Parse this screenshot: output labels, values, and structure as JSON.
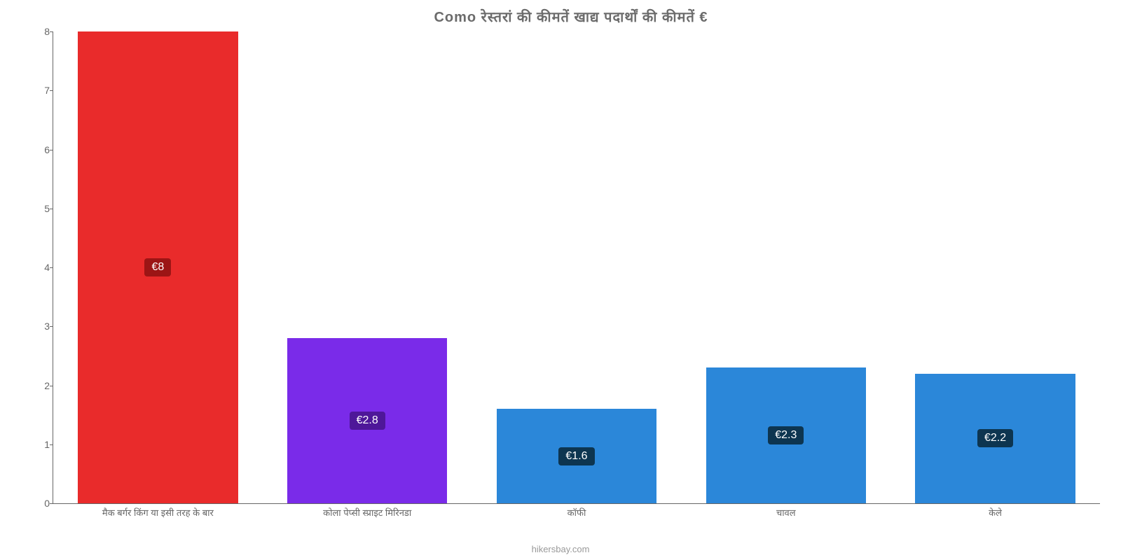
{
  "chart": {
    "type": "bar",
    "title": "Como रेस्तरां की कीमतें खाद्य पदार्थों की कीमतें €",
    "title_color": "#6b6b6b",
    "title_fontsize": 20,
    "background_color": "#ffffff",
    "y_axis": {
      "min": 0,
      "max": 8,
      "tick_step": 1,
      "ticks": [
        0,
        1,
        2,
        3,
        4,
        5,
        6,
        7,
        8
      ],
      "label_fontsize": 14,
      "label_color": "#666666"
    },
    "x_axis": {
      "label_fontsize": 13,
      "label_color": "#666666"
    },
    "bars": [
      {
        "category": "मैक बर्गर किंग या इसी तरह के बार",
        "value": 8,
        "value_label": "€8",
        "bar_color": "#e92b2b",
        "label_bg_color": "#9c1515"
      },
      {
        "category": "कोला पेप्सी स्प्राइट मिरिनडा",
        "value": 2.8,
        "value_label": "€2.8",
        "bar_color": "#7a2be9",
        "label_bg_color": "#4e1799"
      },
      {
        "category": "कॉफी",
        "value": 1.6,
        "value_label": "€1.6",
        "bar_color": "#2b87d9",
        "label_bg_color": "#0d3550"
      },
      {
        "category": "चावल",
        "value": 2.3,
        "value_label": "€2.3",
        "bar_color": "#2b87d9",
        "label_bg_color": "#0d3550"
      },
      {
        "category": "केले",
        "value": 2.2,
        "value_label": "€2.2",
        "bar_color": "#2b87d9",
        "label_bg_color": "#0d3550"
      }
    ],
    "bar_width_pct": 85,
    "attribution": "hikersbay.com",
    "attribution_color": "#999999"
  }
}
